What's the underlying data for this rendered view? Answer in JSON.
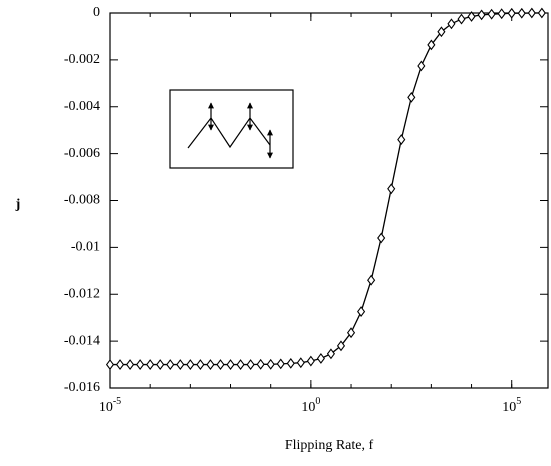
{
  "chart_data": {
    "type": "line",
    "xlabel": "Flipping Rate, f",
    "ylabel": "j",
    "x": [
      1e-05,
      1.778e-05,
      3.162e-05,
      5.623e-05,
      0.0001,
      0.0001778,
      0.0003162,
      0.0005623,
      0.001,
      0.001778,
      0.003162,
      0.005623,
      0.01,
      0.01778,
      0.03162,
      0.05623,
      0.1,
      0.1778,
      0.3162,
      0.5623,
      1,
      1.778,
      3.162,
      5.623,
      10,
      17.78,
      31.62,
      56.23,
      100,
      177.8,
      316.2,
      562.3,
      1000,
      1778,
      3162,
      5623,
      10000,
      17780,
      31620,
      56230,
      100000,
      177800,
      316200,
      562300
    ],
    "values": [
      -0.015,
      -0.015,
      -0.015,
      -0.015,
      -0.015,
      -0.015,
      -0.015,
      -0.015,
      -0.015,
      -0.015,
      -0.015,
      -0.015,
      -0.015,
      -0.015,
      -0.015,
      -0.01499,
      -0.01499,
      -0.01497,
      -0.01495,
      -0.01492,
      -0.01485,
      -0.01474,
      -0.01454,
      -0.0142,
      -0.01364,
      -0.01274,
      -0.0114,
      -0.0096,
      -0.0075,
      -0.0054,
      -0.0036,
      -0.00226,
      -0.00136,
      -0.0008,
      -0.00046,
      -0.00026,
      -0.00015,
      -8e-05,
      -5e-05,
      -3e-05,
      -1e-05,
      -1e-05,
      0,
      0
    ],
    "color": "#000000",
    "xscale": "log",
    "xlim": [
      1e-05,
      800000.0
    ],
    "ylim": [
      -0.016,
      0
    ],
    "xticks": [
      {
        "value": 1e-05,
        "label": "10-5"
      },
      {
        "value": 1,
        "label": "100"
      },
      {
        "value": 100000.0,
        "label": "105"
      }
    ],
    "yticks": [
      0,
      -0.002,
      -0.004,
      -0.006,
      -0.008,
      -0.01,
      -0.012,
      -0.014,
      -0.016
    ]
  }
}
